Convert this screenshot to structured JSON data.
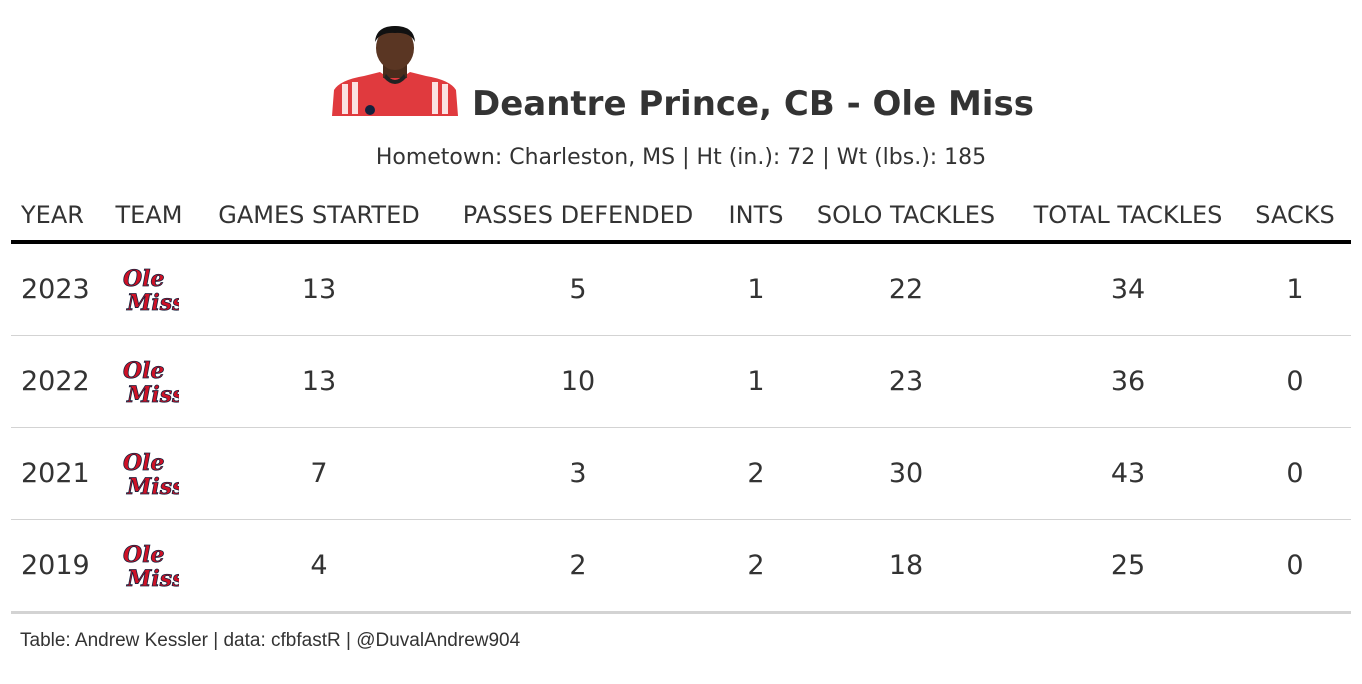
{
  "title": "Deantre Prince, CB - Ole Miss",
  "subtitle": "Hometown: Charleston, MS | Ht (in.): 72 | Wt (lbs.): 185",
  "columns": [
    "YEAR",
    "TEAM",
    "GAMES STARTED",
    "PASSES DEFENDED",
    "INTS",
    "SOLO TACKLES",
    "TOTAL TACKLES",
    "SACKS"
  ],
  "rows": [
    {
      "year": "2023",
      "team_logo": "ole-miss-logo",
      "games_started": "13",
      "passes_defended": "5",
      "ints": "1",
      "solo_tackles": "22",
      "total_tackles": "34",
      "sacks": "1"
    },
    {
      "year": "2022",
      "team_logo": "ole-miss-logo",
      "games_started": "13",
      "passes_defended": "10",
      "ints": "1",
      "solo_tackles": "23",
      "total_tackles": "36",
      "sacks": "0"
    },
    {
      "year": "2021",
      "team_logo": "ole-miss-logo",
      "games_started": "7",
      "passes_defended": "3",
      "ints": "2",
      "solo_tackles": "30",
      "total_tackles": "43",
      "sacks": "0"
    },
    {
      "year": "2019",
      "team_logo": "ole-miss-logo",
      "games_started": "4",
      "passes_defended": "2",
      "ints": "2",
      "solo_tackles": "18",
      "total_tackles": "25",
      "sacks": "0"
    }
  ],
  "source": "Table: Andrew Kessler | data: cfbfastR | @DuvalAndrew904",
  "logo_text": {
    "top": "Ole",
    "bottom": "Miss"
  },
  "colors": {
    "text": "#333333",
    "logo_red": "#ce1126",
    "logo_navy": "#14213d",
    "jersey_red": "#e03a3e",
    "rule": "#000000",
    "row_line": "#d3d3d3"
  },
  "chart_data": {
    "type": "table",
    "title": "Deantre Prince, CB - Ole Miss",
    "subtitle": "Hometown: Charleston, MS | Ht (in.): 72 | Wt (lbs.): 185",
    "columns": [
      "YEAR",
      "TEAM",
      "GAMES STARTED",
      "PASSES DEFENDED",
      "INTS",
      "SOLO TACKLES",
      "TOTAL TACKLES",
      "SACKS"
    ],
    "rows": [
      [
        2023,
        "Ole Miss",
        13,
        5,
        1,
        22,
        34,
        1
      ],
      [
        2022,
        "Ole Miss",
        13,
        10,
        1,
        23,
        36,
        0
      ],
      [
        2021,
        "Ole Miss",
        7,
        3,
        2,
        30,
        43,
        0
      ],
      [
        2019,
        "Ole Miss",
        4,
        2,
        2,
        18,
        25,
        0
      ]
    ]
  }
}
